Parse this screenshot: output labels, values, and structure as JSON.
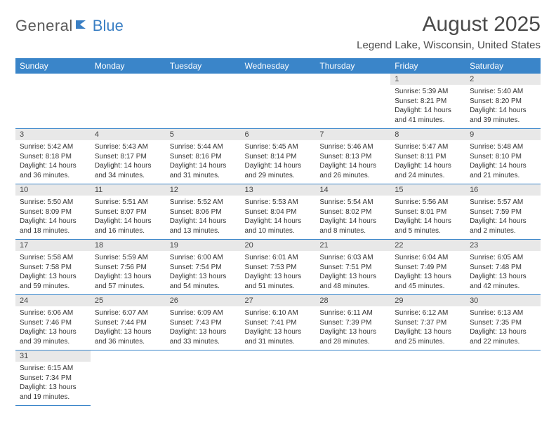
{
  "logo": {
    "general": "General",
    "blue": "Blue"
  },
  "title": "August 2025",
  "location": "Legend Lake, Wisconsin, United States",
  "colors": {
    "header_bg": "#3a85c9",
    "header_text": "#ffffff",
    "daynum_bg": "#e8e8e8",
    "rule": "#3a85c9",
    "logo_gray": "#5a5a5a",
    "logo_blue": "#3a7fc4"
  },
  "weekdays": [
    "Sunday",
    "Monday",
    "Tuesday",
    "Wednesday",
    "Thursday",
    "Friday",
    "Saturday"
  ],
  "month": {
    "year": 2025,
    "month": 8,
    "first_weekday_index": 5,
    "days_in_month": 31
  },
  "days": {
    "1": {
      "sunrise": "5:39 AM",
      "sunset": "8:21 PM",
      "daylight": "14 hours and 41 minutes."
    },
    "2": {
      "sunrise": "5:40 AM",
      "sunset": "8:20 PM",
      "daylight": "14 hours and 39 minutes."
    },
    "3": {
      "sunrise": "5:42 AM",
      "sunset": "8:18 PM",
      "daylight": "14 hours and 36 minutes."
    },
    "4": {
      "sunrise": "5:43 AM",
      "sunset": "8:17 PM",
      "daylight": "14 hours and 34 minutes."
    },
    "5": {
      "sunrise": "5:44 AM",
      "sunset": "8:16 PM",
      "daylight": "14 hours and 31 minutes."
    },
    "6": {
      "sunrise": "5:45 AM",
      "sunset": "8:14 PM",
      "daylight": "14 hours and 29 minutes."
    },
    "7": {
      "sunrise": "5:46 AM",
      "sunset": "8:13 PM",
      "daylight": "14 hours and 26 minutes."
    },
    "8": {
      "sunrise": "5:47 AM",
      "sunset": "8:11 PM",
      "daylight": "14 hours and 24 minutes."
    },
    "9": {
      "sunrise": "5:48 AM",
      "sunset": "8:10 PM",
      "daylight": "14 hours and 21 minutes."
    },
    "10": {
      "sunrise": "5:50 AM",
      "sunset": "8:09 PM",
      "daylight": "14 hours and 18 minutes."
    },
    "11": {
      "sunrise": "5:51 AM",
      "sunset": "8:07 PM",
      "daylight": "14 hours and 16 minutes."
    },
    "12": {
      "sunrise": "5:52 AM",
      "sunset": "8:06 PM",
      "daylight": "14 hours and 13 minutes."
    },
    "13": {
      "sunrise": "5:53 AM",
      "sunset": "8:04 PM",
      "daylight": "14 hours and 10 minutes."
    },
    "14": {
      "sunrise": "5:54 AM",
      "sunset": "8:02 PM",
      "daylight": "14 hours and 8 minutes."
    },
    "15": {
      "sunrise": "5:56 AM",
      "sunset": "8:01 PM",
      "daylight": "14 hours and 5 minutes."
    },
    "16": {
      "sunrise": "5:57 AM",
      "sunset": "7:59 PM",
      "daylight": "14 hours and 2 minutes."
    },
    "17": {
      "sunrise": "5:58 AM",
      "sunset": "7:58 PM",
      "daylight": "13 hours and 59 minutes."
    },
    "18": {
      "sunrise": "5:59 AM",
      "sunset": "7:56 PM",
      "daylight": "13 hours and 57 minutes."
    },
    "19": {
      "sunrise": "6:00 AM",
      "sunset": "7:54 PM",
      "daylight": "13 hours and 54 minutes."
    },
    "20": {
      "sunrise": "6:01 AM",
      "sunset": "7:53 PM",
      "daylight": "13 hours and 51 minutes."
    },
    "21": {
      "sunrise": "6:03 AM",
      "sunset": "7:51 PM",
      "daylight": "13 hours and 48 minutes."
    },
    "22": {
      "sunrise": "6:04 AM",
      "sunset": "7:49 PM",
      "daylight": "13 hours and 45 minutes."
    },
    "23": {
      "sunrise": "6:05 AM",
      "sunset": "7:48 PM",
      "daylight": "13 hours and 42 minutes."
    },
    "24": {
      "sunrise": "6:06 AM",
      "sunset": "7:46 PM",
      "daylight": "13 hours and 39 minutes."
    },
    "25": {
      "sunrise": "6:07 AM",
      "sunset": "7:44 PM",
      "daylight": "13 hours and 36 minutes."
    },
    "26": {
      "sunrise": "6:09 AM",
      "sunset": "7:43 PM",
      "daylight": "13 hours and 33 minutes."
    },
    "27": {
      "sunrise": "6:10 AM",
      "sunset": "7:41 PM",
      "daylight": "13 hours and 31 minutes."
    },
    "28": {
      "sunrise": "6:11 AM",
      "sunset": "7:39 PM",
      "daylight": "13 hours and 28 minutes."
    },
    "29": {
      "sunrise": "6:12 AM",
      "sunset": "7:37 PM",
      "daylight": "13 hours and 25 minutes."
    },
    "30": {
      "sunrise": "6:13 AM",
      "sunset": "7:35 PM",
      "daylight": "13 hours and 22 minutes."
    },
    "31": {
      "sunrise": "6:15 AM",
      "sunset": "7:34 PM",
      "daylight": "13 hours and 19 minutes."
    }
  },
  "labels": {
    "sunrise": "Sunrise: ",
    "sunset": "Sunset: ",
    "daylight": "Daylight: "
  }
}
